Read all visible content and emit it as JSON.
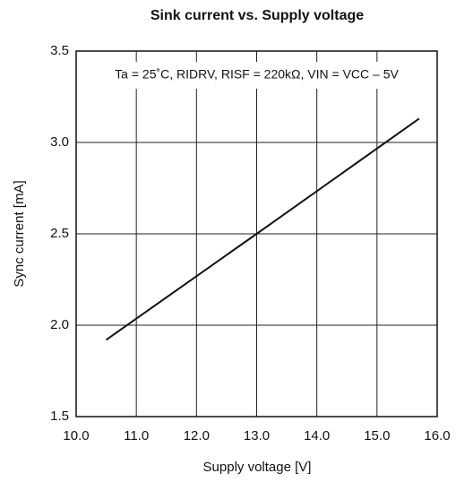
{
  "chart_data": {
    "type": "line",
    "title": "Sink current vs. Supply voltage",
    "annotation": "Ta = 25˚C, RIDRV, RISF = 220kΩ, VIN = VCC – 5V",
    "x_label": "Supply voltage [V]",
    "y_label": "Sync current [mA]",
    "x": [
      10.5,
      13.0,
      15.7
    ],
    "series": [
      {
        "name": "Sink current",
        "color": "#111111",
        "values": [
          1.92,
          2.5,
          3.13
        ]
      }
    ],
    "xlim": [
      10,
      16
    ],
    "xticks": [
      {
        "value": 10,
        "label": "10.0"
      },
      {
        "value": 11,
        "label": "11.0"
      },
      {
        "value": 12,
        "label": "12.0"
      },
      {
        "value": 13,
        "label": "13.0"
      },
      {
        "value": 14,
        "label": "14.0"
      },
      {
        "value": 15,
        "label": "15.0"
      },
      {
        "value": 16,
        "label": "16.0"
      }
    ],
    "ylim": [
      1.5,
      3.5
    ],
    "yticks": [
      1.5,
      {
        "value": 2,
        "label": "2.0"
      },
      2.5,
      {
        "value": 3,
        "label": "3.0"
      },
      3.5
    ],
    "grid": true
  }
}
